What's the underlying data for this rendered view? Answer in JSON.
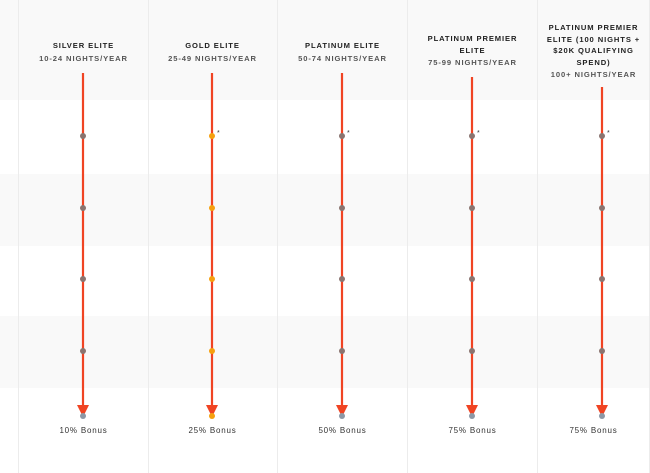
{
  "colors": {
    "arrow": "#f04423",
    "dot_default": "#8a7470",
    "dot_gold": "#f5a00f",
    "dot_end": "#8d98a6",
    "band": "#f9f9f9"
  },
  "tiers": [
    {
      "title_lines": [
        "SILVER ELITE"
      ],
      "nights": "10-24 NIGHTS/YEAR",
      "bonus": "10% Bonus",
      "dot_style": "default",
      "asterisk": false
    },
    {
      "title_lines": [
        "GOLD ELITE"
      ],
      "nights": "25-49 NIGHTS/YEAR",
      "bonus": "25% Bonus",
      "dot_style": "gold",
      "asterisk": true
    },
    {
      "title_lines": [
        "PLATINUM ELITE"
      ],
      "nights": "50-74 NIGHTS/YEAR",
      "bonus": "50% Bonus",
      "dot_style": "default",
      "asterisk": true
    },
    {
      "title_lines": [
        "PLATINUM PREMIER",
        "ELITE"
      ],
      "nights": "75-99 NIGHTS/YEAR",
      "bonus": "75% Bonus",
      "dot_style": "default",
      "asterisk": true
    },
    {
      "title_lines": [
        "PLATINUM PREMIER",
        "ELITE (100 NIGHTS +",
        "$20K QUALIFYING",
        "SPEND)"
      ],
      "nights": "100+ NIGHTS/YEAR",
      "bonus": "75% Bonus",
      "dot_style": "default",
      "asterisk": true
    }
  ],
  "asterisk_symbol": "*"
}
